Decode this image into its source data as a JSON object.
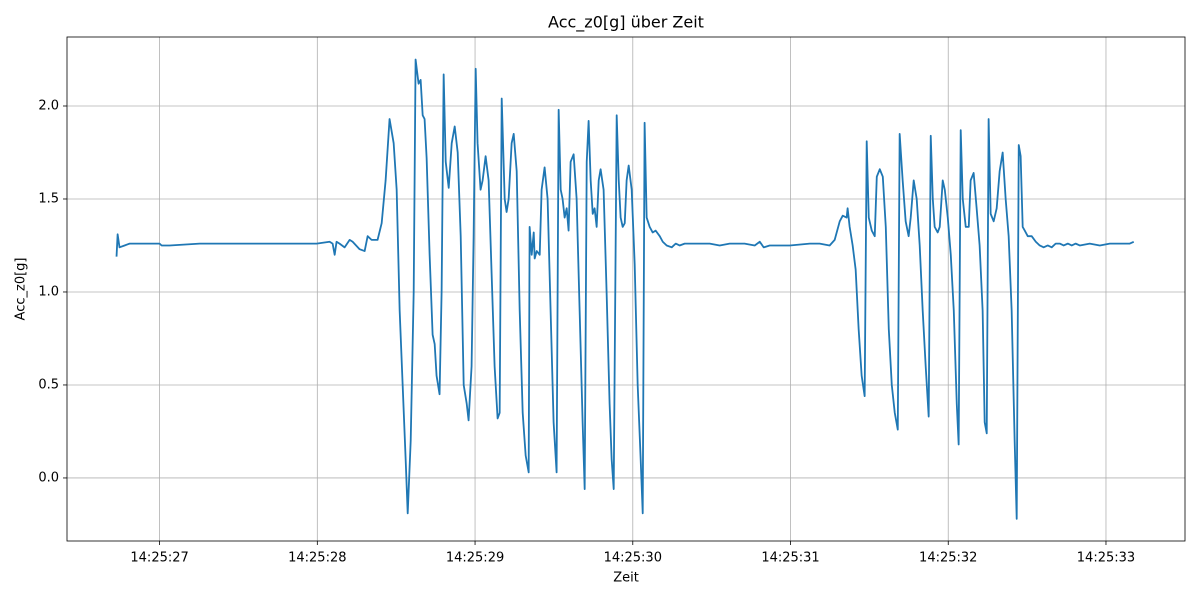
{
  "chart_data": {
    "type": "line",
    "title": "Acc_z0[g] über Zeit",
    "x_label": "Zeit",
    "y_label": "Acc_z0[g]",
    "color": "#1f77b4",
    "grid": true,
    "xlim": [
      "14:25:26.413",
      "14:25:33.501"
    ],
    "xticks": [
      "14:25:27",
      "14:25:28",
      "14:25:29",
      "14:25:30",
      "14:25:31",
      "14:25:32",
      "14:25:33"
    ],
    "ylim": [
      -0.339,
      2.371
    ],
    "yticks": [
      {
        "value": 0,
        "label": "0.0"
      },
      0.5,
      {
        "value": 1,
        "label": "1.0"
      },
      1.5,
      {
        "value": 2,
        "label": "2.0"
      }
    ],
    "x": [
      "14:25:26.727",
      "14:25:26.734",
      "14:25:26.746",
      "14:25:26.778",
      "14:25:26.810",
      "14:25:26.873",
      "14:25:27.000",
      "14:25:27.013",
      "14:25:27.063",
      "14:25:27.254",
      "14:25:27.571",
      "14:25:27.888",
      "14:25:27.996",
      "14:25:28.078",
      "14:25:28.097",
      "14:25:28.110",
      "14:25:28.122",
      "14:25:28.141",
      "14:25:28.173",
      "14:25:28.205",
      "14:25:28.224",
      "14:25:28.268",
      "14:25:28.300",
      "14:25:28.319",
      "14:25:28.344",
      "14:25:28.382",
      "14:25:28.408",
      "14:25:28.433",
      "14:25:28.458",
      "14:25:28.484",
      "14:25:28.503",
      "14:25:28.522",
      "14:25:28.541",
      "14:25:28.560",
      "14:25:28.573",
      "14:25:28.592",
      "14:25:28.611",
      "14:25:28.623",
      "14:25:28.642",
      "14:25:28.655",
      "14:25:28.668",
      "14:25:28.680",
      "14:25:28.693",
      "14:25:28.712",
      "14:25:28.731",
      "14:25:28.744",
      "14:25:28.756",
      "14:25:28.775",
      "14:25:28.788",
      "14:25:28.801",
      "14:25:28.814",
      "14:25:28.833",
      "14:25:28.852",
      "14:25:28.871",
      "14:25:28.890",
      "14:25:28.909",
      "14:25:28.928",
      "14:25:28.947",
      "14:25:28.959",
      "14:25:28.978",
      "14:25:28.991",
      "14:25:29.004",
      "14:25:29.016",
      "14:25:29.035",
      "14:25:29.048",
      "14:25:29.067",
      "14:25:29.086",
      "14:25:29.105",
      "14:25:29.124",
      "14:25:29.143",
      "14:25:29.156",
      "14:25:29.169",
      "14:25:29.188",
      "14:25:29.200",
      "14:25:29.213",
      "14:25:29.232",
      "14:25:29.245",
      "14:25:29.264",
      "14:25:29.283",
      "14:25:29.302",
      "14:25:29.321",
      "14:25:29.340",
      "14:25:29.346",
      "14:25:29.359",
      "14:25:29.372",
      "14:25:29.378",
      "14:25:29.391",
      "14:25:29.410",
      "14:25:29.422",
      "14:25:29.441",
      "14:25:29.460",
      "14:25:29.479",
      "14:25:29.498",
      "14:25:29.517",
      "14:25:29.530",
      "14:25:29.543",
      "14:25:29.555",
      "14:25:29.568",
      "14:25:29.581",
      "14:25:29.593",
      "14:25:29.606",
      "14:25:29.625",
      "14:25:29.644",
      "14:25:29.663",
      "14:25:29.682",
      "14:25:29.695",
      "14:25:29.708",
      "14:25:29.720",
      "14:25:29.733",
      "14:25:29.746",
      "14:25:29.758",
      "14:25:29.771",
      "14:25:29.784",
      "14:25:29.796",
      "14:25:29.815",
      "14:25:29.834",
      "14:25:29.853",
      "14:25:29.866",
      "14:25:29.879",
      "14:25:29.898",
      "14:25:29.911",
      "14:25:29.923",
      "14:25:29.936",
      "14:25:29.949",
      "14:25:29.961",
      "14:25:29.974",
      "14:25:29.993",
      "14:25:30.012",
      "14:25:30.031",
      "14:25:30.050",
      "14:25:30.063",
      "14:25:30.075",
      "14:25:30.088",
      "14:25:30.107",
      "14:25:30.126",
      "14:25:30.145",
      "14:25:30.171",
      "14:25:30.190",
      "14:25:30.215",
      "14:25:30.247",
      "14:25:30.272",
      "14:25:30.297",
      "14:25:30.329",
      "14:25:30.361",
      "14:25:30.424",
      "14:25:30.488",
      "14:25:30.551",
      "14:25:30.614",
      "14:25:30.709",
      "14:25:30.773",
      "14:25:30.805",
      "14:25:30.830",
      "14:25:30.868",
      "14:25:30.995",
      "14:25:31.122",
      "14:25:31.185",
      "14:25:31.248",
      "14:25:31.280",
      "14:25:31.312",
      "14:25:31.331",
      "14:25:31.356",
      "14:25:31.362",
      "14:25:31.375",
      "14:25:31.394",
      "14:25:31.413",
      "14:25:31.432",
      "14:25:31.451",
      "14:25:31.470",
      "14:25:31.483",
      "14:25:31.496",
      "14:25:31.515",
      "14:25:31.534",
      "14:25:31.547",
      "14:25:31.566",
      "14:25:31.585",
      "14:25:31.604",
      "14:25:31.623",
      "14:25:31.642",
      "14:25:31.661",
      "14:25:31.680",
      "14:25:31.692",
      "14:25:31.711",
      "14:25:31.730",
      "14:25:31.749",
      "14:25:31.762",
      "14:25:31.781",
      "14:25:31.800",
      "14:25:31.819",
      "14:25:31.838",
      "14:25:31.857",
      "14:25:31.876",
      "14:25:31.889",
      "14:25:31.902",
      "14:25:31.914",
      "14:25:31.933",
      "14:25:31.946",
      "14:25:31.965",
      "14:25:31.978",
      "14:25:31.997",
      "14:25:32.016",
      "14:25:32.035",
      "14:25:32.054",
      "14:25:32.066",
      "14:25:32.079",
      "14:25:32.092",
      "14:25:32.111",
      "14:25:32.130",
      "14:25:32.142",
      "14:25:32.161",
      "14:25:32.180",
      "14:25:32.199",
      "14:25:32.218",
      "14:25:32.231",
      "14:25:32.244",
      "14:25:32.256",
      "14:25:32.269",
      "14:25:32.288",
      "14:25:32.307",
      "14:25:32.326",
      "14:25:32.345",
      "14:25:32.364",
      "14:25:32.383",
      "14:25:32.402",
      "14:25:32.421",
      "14:25:32.434",
      "14:25:32.447",
      "14:25:32.459",
      "14:25:32.472",
      "14:25:32.485",
      "14:25:32.504",
      "14:25:32.529",
      "14:25:32.555",
      "14:25:32.580",
      "14:25:32.605",
      "14:25:32.631",
      "14:25:32.656",
      "14:25:32.681",
      "14:25:32.707",
      "14:25:32.732",
      "14:25:32.758",
      "14:25:32.783",
      "14:25:32.808",
      "14:25:32.834",
      "14:25:32.897",
      "14:25:32.961",
      "14:25:33.024",
      "14:25:33.087",
      "14:25:33.151",
      "14:25:33.176"
    ],
    "values": [
      1.19,
      1.31,
      1.24,
      1.25,
      1.26,
      1.26,
      1.26,
      1.25,
      1.25,
      1.26,
      1.26,
      1.26,
      1.26,
      1.27,
      1.26,
      1.2,
      1.27,
      1.26,
      1.24,
      1.28,
      1.27,
      1.23,
      1.22,
      1.3,
      1.28,
      1.28,
      1.37,
      1.6,
      1.93,
      1.8,
      1.55,
      0.9,
      0.5,
      0.1,
      -0.19,
      0.2,
      1.0,
      2.25,
      2.12,
      2.14,
      1.95,
      1.93,
      1.72,
      1.2,
      0.77,
      0.72,
      0.55,
      0.45,
      1.0,
      2.17,
      1.7,
      1.56,
      1.8,
      1.89,
      1.75,
      1.3,
      0.5,
      0.4,
      0.31,
      0.6,
      1.3,
      2.2,
      1.8,
      1.55,
      1.6,
      1.73,
      1.6,
      1.1,
      0.6,
      0.32,
      0.35,
      2.04,
      1.5,
      1.43,
      1.5,
      1.8,
      1.85,
      1.65,
      0.9,
      0.35,
      0.12,
      0.03,
      1.35,
      1.2,
      1.32,
      1.18,
      1.22,
      1.2,
      1.55,
      1.67,
      1.5,
      0.9,
      0.3,
      0.03,
      1.98,
      1.55,
      1.5,
      1.4,
      1.45,
      1.33,
      1.7,
      1.74,
      1.5,
      0.9,
      0.3,
      -0.06,
      1.7,
      1.92,
      1.6,
      1.42,
      1.45,
      1.35,
      1.6,
      1.66,
      1.55,
      1.0,
      0.4,
      0.1,
      -0.06,
      1.95,
      1.6,
      1.4,
      1.35,
      1.37,
      1.6,
      1.68,
      1.55,
      1.15,
      0.5,
      0.1,
      -0.19,
      1.91,
      1.4,
      1.35,
      1.32,
      1.33,
      1.3,
      1.27,
      1.25,
      1.24,
      1.26,
      1.25,
      1.26,
      1.26,
      1.26,
      1.26,
      1.25,
      1.26,
      1.26,
      1.25,
      1.27,
      1.24,
      1.25,
      1.25,
      1.26,
      1.26,
      1.25,
      1.28,
      1.38,
      1.41,
      1.4,
      1.45,
      1.35,
      1.25,
      1.12,
      0.8,
      0.55,
      0.44,
      1.81,
      1.4,
      1.33,
      1.3,
      1.62,
      1.66,
      1.62,
      1.35,
      0.8,
      0.5,
      0.35,
      0.26,
      1.85,
      1.6,
      1.38,
      1.3,
      1.4,
      1.6,
      1.5,
      1.25,
      0.9,
      0.6,
      0.33,
      1.84,
      1.5,
      1.35,
      1.32,
      1.35,
      1.6,
      1.55,
      1.4,
      1.2,
      0.9,
      0.4,
      0.18,
      1.87,
      1.5,
      1.35,
      1.35,
      1.6,
      1.64,
      1.45,
      1.25,
      0.9,
      0.3,
      0.24,
      1.93,
      1.42,
      1.38,
      1.45,
      1.65,
      1.75,
      1.5,
      1.3,
      0.9,
      0.2,
      -0.22,
      1.79,
      1.73,
      1.35,
      1.33,
      1.3,
      1.3,
      1.27,
      1.25,
      1.24,
      1.25,
      1.24,
      1.26,
      1.26,
      1.25,
      1.26,
      1.25,
      1.26,
      1.25,
      1.26,
      1.25,
      1.26,
      1.26,
      1.26,
      1.27
    ]
  }
}
